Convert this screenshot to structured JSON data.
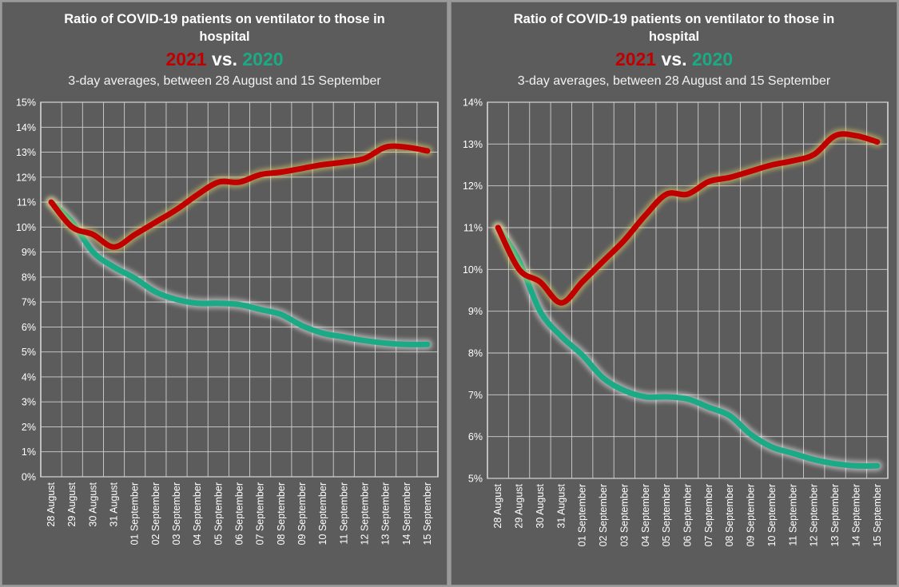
{
  "chart_data": [
    {
      "type": "line",
      "title": "Ratio of COVID-19 patients on ventilator to those in hospital",
      "title_lines": [
        "Ratio of COVID-19 patients on ventilator to those in",
        "hospital"
      ],
      "comparison": {
        "a": "2021",
        "vs": "vs.",
        "b": "2020"
      },
      "subtitle": "3-day averages, between 28 August and 15 September",
      "categories": [
        "28 August",
        "29 August",
        "30 August",
        "31 August",
        "01 September",
        "02 September",
        "03 September",
        "04 September",
        "05 September",
        "06 September",
        "07 September",
        "08 September",
        "09 September",
        "10 September",
        "11 September",
        "12 September",
        "13 September",
        "14 September",
        "15 September"
      ],
      "series": [
        {
          "name": "2021",
          "color": "#c00000",
          "values": [
            11.0,
            10.0,
            9.7,
            9.2,
            9.7,
            10.2,
            10.7,
            11.3,
            11.8,
            11.8,
            12.1,
            12.2,
            12.35,
            12.5,
            12.6,
            12.75,
            13.2,
            13.2,
            13.05
          ]
        },
        {
          "name": "2020",
          "color": "#1aab86",
          "values": [
            11.0,
            10.2,
            9.0,
            8.4,
            7.95,
            7.4,
            7.1,
            6.95,
            6.95,
            6.9,
            6.7,
            6.5,
            6.05,
            5.75,
            5.6,
            5.45,
            5.35,
            5.3,
            5.3
          ]
        }
      ],
      "y_ticks": [
        "0%",
        "1%",
        "2%",
        "3%",
        "4%",
        "5%",
        "6%",
        "7%",
        "8%",
        "9%",
        "10%",
        "11%",
        "12%",
        "13%",
        "14%",
        "15%"
      ],
      "ylim": [
        0,
        15
      ],
      "grid": true
    },
    {
      "type": "line",
      "title": "Ratio of COVID-19 patients on ventilator to those in hospital",
      "title_lines": [
        "Ratio of COVID-19 patients on ventilator to those in",
        "hospital"
      ],
      "comparison": {
        "a": "2021",
        "vs": "vs.",
        "b": "2020"
      },
      "subtitle": "3-day averages, between 28 August and 15 September",
      "categories": [
        "28 August",
        "29 August",
        "30 August",
        "31 August",
        "01 September",
        "02 September",
        "03 September",
        "04 September",
        "05 September",
        "06 September",
        "07 September",
        "08 September",
        "09 September",
        "10 September",
        "11 September",
        "12 September",
        "13 September",
        "14 September",
        "15 September"
      ],
      "series": [
        {
          "name": "2021",
          "color": "#c00000",
          "values": [
            11.0,
            10.0,
            9.7,
            9.2,
            9.7,
            10.2,
            10.7,
            11.3,
            11.8,
            11.8,
            12.1,
            12.2,
            12.35,
            12.5,
            12.6,
            12.75,
            13.2,
            13.2,
            13.05
          ]
        },
        {
          "name": "2020",
          "color": "#1aab86",
          "values": [
            11.0,
            10.2,
            9.0,
            8.4,
            7.95,
            7.4,
            7.1,
            6.95,
            6.95,
            6.9,
            6.7,
            6.5,
            6.05,
            5.75,
            5.6,
            5.45,
            5.35,
            5.3,
            5.3
          ]
        }
      ],
      "y_ticks": [
        "5%",
        "6%",
        "7%",
        "8%",
        "9%",
        "10%",
        "11%",
        "12%",
        "13%",
        "14%"
      ],
      "ylim": [
        5,
        14
      ],
      "grid": true
    }
  ]
}
